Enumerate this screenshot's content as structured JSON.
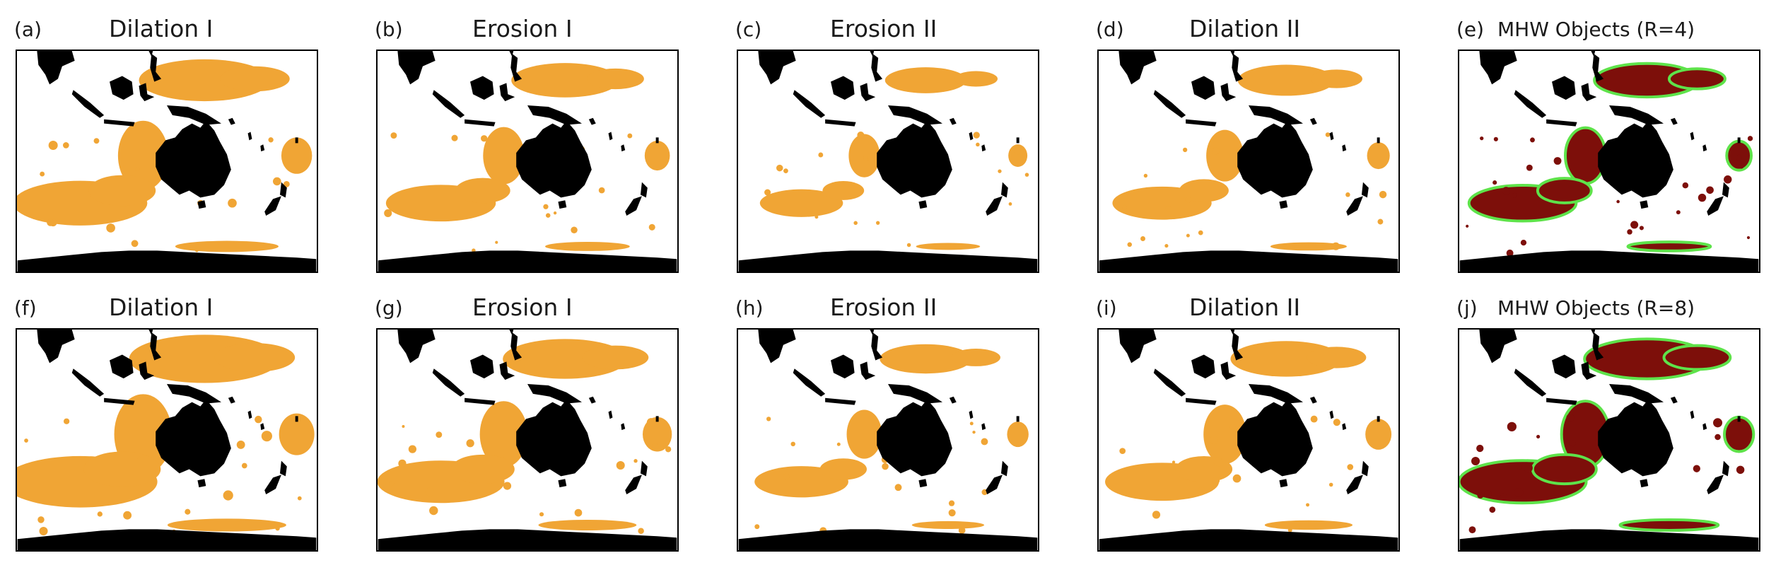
{
  "colors": {
    "land": "#000000",
    "anomaly_fill": "#f0a535",
    "object_fill": "#7d0f0a",
    "object_outline": "#5ee34a",
    "background": "#ffffff"
  },
  "panels": [
    {
      "label": "(a)",
      "title": "Dilation I",
      "kind": "mask",
      "variant": 1.0
    },
    {
      "label": "(b)",
      "title": "Erosion I",
      "kind": "mask",
      "variant": 0.82
    },
    {
      "label": "(c)",
      "title": "Erosion II",
      "kind": "mask",
      "variant": 0.62
    },
    {
      "label": "(d)",
      "title": "Dilation II",
      "kind": "mask",
      "variant": 0.74
    },
    {
      "label": "(e)",
      "title": "MHW Objects (R=4)",
      "kind": "objects",
      "variant": 0.8
    },
    {
      "label": "(f)",
      "title": "Dilation I",
      "kind": "mask",
      "variant": 1.15
    },
    {
      "label": "(g)",
      "title": "Erosion I",
      "kind": "mask",
      "variant": 0.95
    },
    {
      "label": "(h)",
      "title": "Erosion II",
      "kind": "mask",
      "variant": 0.7
    },
    {
      "label": "(i)",
      "title": "Dilation II",
      "kind": "mask",
      "variant": 0.85
    },
    {
      "label": "(j)",
      "title": "MHW Objects (R=8)",
      "kind": "objects",
      "variant": 0.95
    }
  ]
}
